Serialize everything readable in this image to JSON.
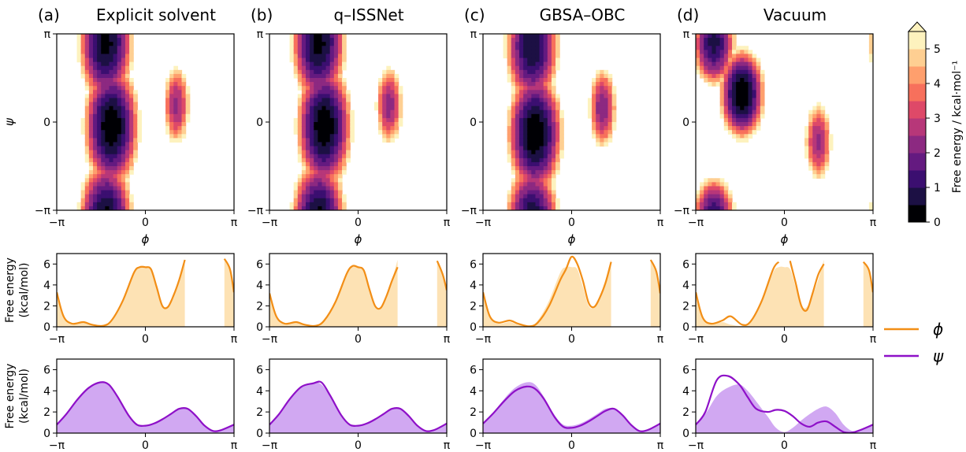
{
  "panels": [
    {
      "label": "(a)",
      "title": "Explicit solvent"
    },
    {
      "label": "(b)",
      "title": "q–ISSNet"
    },
    {
      "label": "(c)",
      "title": "GBSA–OBC"
    },
    {
      "label": "(d)",
      "title": "Vacuum"
    }
  ],
  "axes": {
    "phi_label": "ϕ",
    "psi_label": "ψ",
    "ticks": [
      "−π",
      "0",
      "π"
    ],
    "fe_ylabel_line1": "Free energy",
    "fe_ylabel_line2": "(kcal/mol)",
    "fe_yticks": [
      "0",
      "2",
      "4",
      "6"
    ]
  },
  "colorbar": {
    "label": "Free energy / kcal·mol⁻¹",
    "ticks": [
      "0",
      "1",
      "2",
      "3",
      "4",
      "5"
    ],
    "extend": "max",
    "colors": [
      "#000004",
      "#1c1044",
      "#3b0f70",
      "#641a80",
      "#8c2981",
      "#b73779",
      "#de4968",
      "#f7705c",
      "#fe9f6d",
      "#fecf92",
      "#fdf2be"
    ]
  },
  "legend": [
    {
      "name": "ϕ",
      "color": "#f28e16"
    },
    {
      "name": "ψ",
      "color": "#8e10c8"
    }
  ],
  "chart_data": [
    {
      "type": "heatmap",
      "panel": "Explicit solvent",
      "xlabel": "ϕ",
      "ylabel": "ψ",
      "xlim": [
        -3.1416,
        3.1416
      ],
      "ylim": [
        -3.1416,
        3.1416
      ],
      "zlim": [
        0,
        5.5
      ],
      "minima": [
        {
          "phi": -1.4,
          "psi": 2.8,
          "fe": 0.3
        },
        {
          "phi": -1.2,
          "psi": -0.15,
          "fe": 0.0
        },
        {
          "phi": 1.1,
          "psi": 0.6,
          "fe": 2.3
        }
      ]
    },
    {
      "type": "heatmap",
      "panel": "q–ISSNet",
      "xlabel": "ϕ",
      "ylabel": "ψ",
      "xlim": [
        -3.1416,
        3.1416
      ],
      "ylim": [
        -3.1416,
        3.1416
      ],
      "zlim": [
        0,
        5.5
      ],
      "minima": [
        {
          "phi": -1.4,
          "psi": 2.8,
          "fe": 0.3
        },
        {
          "phi": -1.2,
          "psi": -0.15,
          "fe": 0.0
        },
        {
          "phi": 1.1,
          "psi": 0.6,
          "fe": 2.2
        }
      ]
    },
    {
      "type": "heatmap",
      "panel": "GBSA–OBC",
      "xlabel": "ϕ",
      "ylabel": "ψ",
      "xlim": [
        -3.1416,
        3.1416
      ],
      "ylim": [
        -3.1416,
        3.1416
      ],
      "zlim": [
        0,
        5.5
      ],
      "minima": [
        {
          "phi": -1.4,
          "psi": 2.7,
          "fe": 0.5
        },
        {
          "phi": -1.3,
          "psi": -0.4,
          "fe": 0.0
        },
        {
          "phi": 1.1,
          "psi": 0.5,
          "fe": 2.0
        }
      ]
    },
    {
      "type": "heatmap",
      "panel": "Vacuum",
      "xlabel": "ϕ",
      "ylabel": "ψ",
      "xlim": [
        -3.1416,
        3.1416
      ],
      "ylim": [
        -3.1416,
        3.1416
      ],
      "zlim": [
        0,
        5.5
      ],
      "minima": [
        {
          "phi": -2.5,
          "psi": 2.8,
          "fe": 0.8
        },
        {
          "phi": -1.5,
          "psi": 1.0,
          "fe": 0.0
        },
        {
          "phi": 1.2,
          "psi": -0.7,
          "fe": 2.3
        }
      ]
    },
    {
      "type": "line",
      "panel": "Explicit solvent",
      "variable": "phi",
      "xlabel": "",
      "ylabel": "Free energy (kcal/mol)",
      "xlim": [
        -3.1416,
        3.1416
      ],
      "ylim": [
        0,
        7
      ],
      "x": [
        -3.14,
        -2.9,
        -2.6,
        -2.2,
        -1.9,
        -1.5,
        -1.2,
        -0.8,
        -0.4,
        -0.2,
        0,
        0.2,
        0.4,
        0.6,
        0.8,
        1.0,
        1.2,
        1.4,
        1.6
      ],
      "series": [
        {
          "name": "ϕ",
          "values": [
            3.3,
            1.0,
            0.3,
            0.45,
            0.2,
            0.1,
            0.6,
            2.5,
            5.2,
            5.7,
            5.7,
            5.5,
            3.8,
            2.0,
            1.9,
            3.0,
            4.5,
            6.4,
            null
          ],
          "shaded": [
            3.3,
            1.0,
            0.3,
            0.45,
            0.2,
            0.1,
            0.6,
            2.5,
            5.2,
            5.7,
            5.7,
            5.5,
            3.8,
            2.0,
            1.9,
            3.0,
            4.5,
            6.4,
            null
          ]
        }
      ],
      "right_segment": {
        "x": [
          2.8,
          3.0,
          3.14
        ],
        "values": [
          6.5,
          5.5,
          3.3
        ]
      }
    },
    {
      "type": "line",
      "panel": "q–ISSNet",
      "variable": "phi",
      "xlabel": "",
      "ylabel": "Free energy (kcal/mol)",
      "xlim": [
        -3.1416,
        3.1416
      ],
      "ylim": [
        0,
        7
      ],
      "x": [
        -3.14,
        -2.9,
        -2.6,
        -2.2,
        -1.9,
        -1.5,
        -1.2,
        -0.8,
        -0.4,
        -0.2,
        0,
        0.2,
        0.4,
        0.6,
        0.8,
        1.0,
        1.2,
        1.4,
        1.6
      ],
      "series": [
        {
          "name": "ϕ",
          "values": [
            3.2,
            1.0,
            0.3,
            0.45,
            0.2,
            0.1,
            0.6,
            2.4,
            5.1,
            5.8,
            5.7,
            5.4,
            3.6,
            2.0,
            1.8,
            2.9,
            4.4,
            5.7,
            null
          ],
          "shaded": [
            3.3,
            1.0,
            0.3,
            0.45,
            0.2,
            0.1,
            0.6,
            2.5,
            5.2,
            5.7,
            5.7,
            5.5,
            3.8,
            2.0,
            1.9,
            3.0,
            4.5,
            6.4,
            null
          ]
        }
      ],
      "right_segment": {
        "x": [
          2.8,
          3.0,
          3.14
        ],
        "values": [
          6.3,
          5.0,
          3.5
        ]
      }
    },
    {
      "type": "line",
      "panel": "GBSA–OBC",
      "variable": "phi",
      "xlabel": "",
      "ylabel": "Free energy (kcal/mol)",
      "xlim": [
        -3.1416,
        3.1416
      ],
      "ylim": [
        0,
        7
      ],
      "x": [
        -3.14,
        -2.9,
        -2.6,
        -2.2,
        -1.9,
        -1.5,
        -1.2,
        -0.8,
        -0.4,
        -0.2,
        0,
        0.2,
        0.4,
        0.6,
        0.8,
        1.0,
        1.2,
        1.4,
        1.6
      ],
      "series": [
        {
          "name": "ϕ",
          "values": [
            3.3,
            1.0,
            0.4,
            0.6,
            0.3,
            0.05,
            0.4,
            2.0,
            4.5,
            5.5,
            6.7,
            6.0,
            4.4,
            2.3,
            1.9,
            2.8,
            4.2,
            6.2,
            null
          ],
          "shaded": [
            3.3,
            1.0,
            0.3,
            0.45,
            0.2,
            0.1,
            0.6,
            2.5,
            5.2,
            5.7,
            5.7,
            5.5,
            3.8,
            2.0,
            1.9,
            3.0,
            4.5,
            6.4,
            null
          ]
        }
      ],
      "right_segment": {
        "x": [
          2.8,
          3.0,
          3.14
        ],
        "values": [
          6.4,
          5.3,
          3.2
        ]
      }
    },
    {
      "type": "line",
      "panel": "Vacuum",
      "variable": "phi",
      "xlabel": "",
      "ylabel": "Free energy (kcal/mol)",
      "xlim": [
        -3.1416,
        3.1416
      ],
      "ylim": [
        0,
        7
      ],
      "x": [
        -3.14,
        -2.9,
        -2.6,
        -2.2,
        -1.9,
        -1.5,
        -1.2,
        -0.8,
        -0.4,
        -0.2,
        0,
        0.2,
        0.4,
        0.6,
        0.8,
        1.0,
        1.2,
        1.4,
        1.6
      ],
      "series": [
        {
          "name": "ϕ",
          "values": [
            3.3,
            0.9,
            0.3,
            0.6,
            1.0,
            0.2,
            0.5,
            2.5,
            5.5,
            6.2,
            null,
            6.3,
            4.2,
            2.0,
            1.6,
            3.2,
            5.0,
            6.0,
            null
          ],
          "shaded": [
            3.3,
            1.0,
            0.3,
            0.45,
            0.2,
            0.1,
            0.6,
            2.5,
            5.2,
            5.7,
            5.7,
            5.5,
            3.8,
            2.0,
            1.9,
            3.0,
            4.5,
            6.4,
            null
          ]
        }
      ],
      "right_segment": {
        "x": [
          2.8,
          3.0,
          3.14
        ],
        "values": [
          6.2,
          5.4,
          3.3
        ]
      }
    },
    {
      "type": "line",
      "panel": "Explicit solvent",
      "variable": "psi",
      "xlabel": "",
      "ylabel": "Free energy (kcal/mol)",
      "xlim": [
        -3.1416,
        3.1416
      ],
      "ylim": [
        0,
        7
      ],
      "x": [
        -3.14,
        -2.8,
        -2.4,
        -2.0,
        -1.6,
        -1.3,
        -1.0,
        -0.6,
        -0.3,
        0,
        0.3,
        0.6,
        0.9,
        1.2,
        1.5,
        1.8,
        2.1,
        2.4,
        2.7,
        3.14
      ],
      "series": [
        {
          "name": "ψ",
          "values": [
            0.8,
            1.8,
            3.2,
            4.3,
            4.8,
            4.6,
            3.5,
            1.7,
            0.8,
            0.7,
            0.9,
            1.3,
            1.8,
            2.3,
            2.3,
            1.6,
            0.7,
            0.2,
            0.3,
            0.8
          ],
          "shaded": [
            0.8,
            1.8,
            3.2,
            4.3,
            4.8,
            4.6,
            3.5,
            1.7,
            0.8,
            0.7,
            0.9,
            1.3,
            1.8,
            2.3,
            2.3,
            1.6,
            0.7,
            0.2,
            0.3,
            0.8
          ]
        }
      ]
    },
    {
      "type": "line",
      "panel": "q–ISSNet",
      "variable": "psi",
      "xlabel": "",
      "ylabel": "Free energy (kcal/mol)",
      "xlim": [
        -3.1416,
        3.1416
      ],
      "ylim": [
        0,
        7
      ],
      "x": [
        -3.14,
        -2.8,
        -2.4,
        -2.0,
        -1.6,
        -1.3,
        -1.0,
        -0.6,
        -0.3,
        0,
        0.3,
        0.6,
        0.9,
        1.2,
        1.5,
        1.8,
        2.1,
        2.4,
        2.7,
        3.14
      ],
      "series": [
        {
          "name": "ψ",
          "values": [
            0.8,
            1.8,
            3.3,
            4.4,
            4.7,
            4.8,
            3.6,
            1.7,
            0.8,
            0.7,
            0.9,
            1.3,
            1.8,
            2.3,
            2.3,
            1.6,
            0.7,
            0.2,
            0.3,
            0.9
          ],
          "shaded": [
            0.8,
            1.8,
            3.2,
            4.3,
            4.8,
            4.6,
            3.5,
            1.7,
            0.8,
            0.7,
            0.9,
            1.3,
            1.8,
            2.3,
            2.3,
            1.6,
            0.7,
            0.2,
            0.3,
            0.8
          ]
        }
      ]
    },
    {
      "type": "line",
      "panel": "GBSA–OBC",
      "variable": "psi",
      "xlabel": "",
      "ylabel": "Free energy (kcal/mol)",
      "xlim": [
        -3.1416,
        3.1416
      ],
      "ylim": [
        0,
        7
      ],
      "x": [
        -3.14,
        -2.8,
        -2.4,
        -2.0,
        -1.6,
        -1.3,
        -1.0,
        -0.6,
        -0.3,
        0,
        0.3,
        0.6,
        0.9,
        1.2,
        1.5,
        1.8,
        2.1,
        2.4,
        2.7,
        3.14
      ],
      "series": [
        {
          "name": "ψ",
          "values": [
            0.9,
            1.8,
            3.0,
            4.0,
            4.4,
            4.2,
            3.3,
            1.5,
            0.6,
            0.5,
            0.7,
            1.1,
            1.6,
            2.1,
            2.3,
            1.7,
            0.8,
            0.2,
            0.3,
            0.9
          ],
          "shaded": [
            0.8,
            1.8,
            3.2,
            4.3,
            4.8,
            4.6,
            3.5,
            1.7,
            0.8,
            0.7,
            0.9,
            1.3,
            1.8,
            2.3,
            2.3,
            1.6,
            0.7,
            0.2,
            0.3,
            0.8
          ]
        }
      ]
    },
    {
      "type": "line",
      "panel": "Vacuum",
      "variable": "psi",
      "xlabel": "",
      "ylabel": "Free energy (kcal/mol)",
      "xlim": [
        -3.1416,
        3.1416
      ],
      "ylim": [
        0,
        7
      ],
      "x": [
        -3.14,
        -2.8,
        -2.4,
        -2.0,
        -1.6,
        -1.3,
        -1.0,
        -0.6,
        -0.3,
        0,
        0.3,
        0.6,
        0.9,
        1.2,
        1.5,
        1.8,
        2.1,
        2.4,
        2.7,
        3.14
      ],
      "series": [
        {
          "name": "ψ",
          "values": [
            0.8,
            2.0,
            5.0,
            5.4,
            4.6,
            3.4,
            2.3,
            2.0,
            2.2,
            2.1,
            1.6,
            0.9,
            0.6,
            1.0,
            1.1,
            0.6,
            0.1,
            0.05,
            0.3,
            0.8
          ],
          "shaded": [
            0.8,
            1.8,
            3.5,
            4.3,
            4.6,
            4.0,
            3.0,
            1.6,
            0.5,
            0.1,
            0.5,
            1.2,
            1.8,
            2.3,
            2.5,
            1.9,
            0.8,
            0.2,
            0.3,
            0.8
          ]
        }
      ]
    }
  ]
}
